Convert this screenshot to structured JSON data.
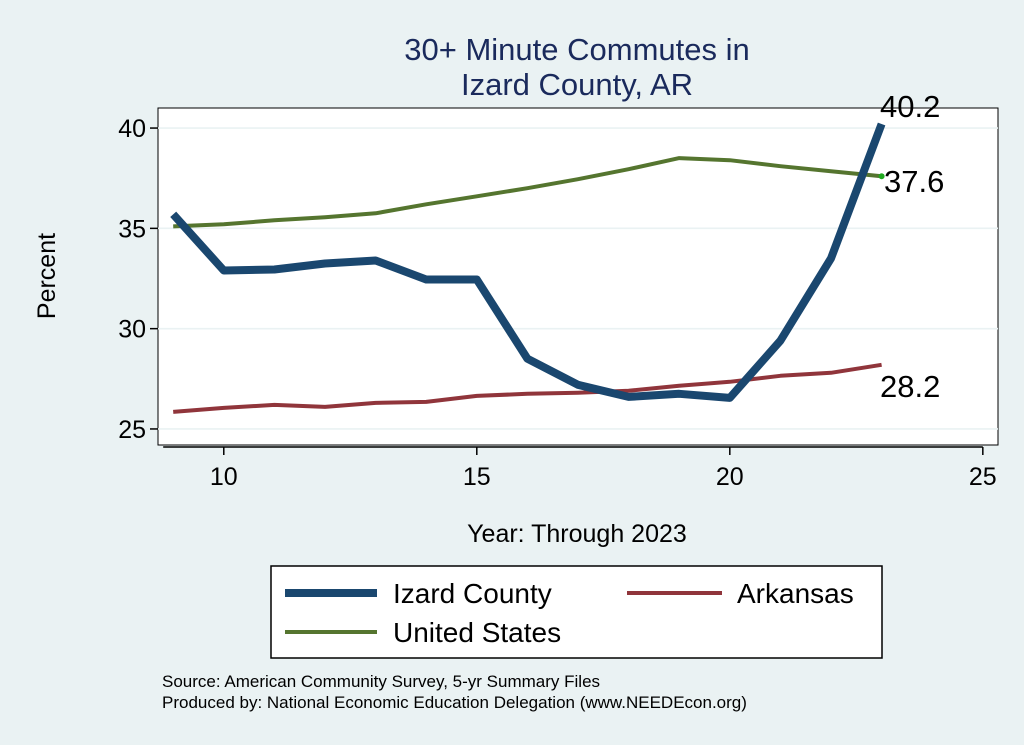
{
  "chart_data": {
    "type": "line",
    "title_lines": [
      "30+ Minute Commutes in",
      "Izard County, AR"
    ],
    "xlabel": "Year: Through 2023",
    "ylabel": "Percent",
    "xlim": [
      8.7,
      25.3
    ],
    "ylim": [
      24.2,
      41.0
    ],
    "xticks": [
      10,
      15,
      20,
      25
    ],
    "yticks": [
      25,
      30,
      35,
      40
    ],
    "grid": true,
    "legend_position": "bottom",
    "x": [
      9,
      10,
      11,
      12,
      13,
      14,
      15,
      16,
      17,
      18,
      19,
      20,
      21,
      22,
      23
    ],
    "series": [
      {
        "name": "Izard County",
        "color": "#1a476f",
        "values": [
          35.7,
          32.9,
          32.95,
          33.25,
          33.4,
          32.45,
          32.45,
          28.5,
          27.2,
          26.6,
          26.75,
          26.55,
          29.4,
          33.5,
          40.2
        ],
        "end_label": "40.2"
      },
      {
        "name": "Arkansas",
        "color": "#90353b",
        "values": [
          25.85,
          26.05,
          26.2,
          26.1,
          26.3,
          26.35,
          26.65,
          26.75,
          26.8,
          26.9,
          27.15,
          27.35,
          27.65,
          27.8,
          28.2
        ],
        "end_label": "28.2"
      },
      {
        "name": "United States",
        "color": "#55752f",
        "values": [
          35.1,
          35.2,
          35.4,
          35.55,
          35.75,
          36.2,
          36.6,
          37.0,
          37.45,
          37.95,
          38.5,
          38.4,
          38.1,
          37.85,
          37.6
        ],
        "end_label": "37.6"
      }
    ],
    "source_lines": [
      "Source: American Community Survey, 5-yr Summary Files",
      "Produced by: National Economic Education Delegation (www.NEEDEcon.org)"
    ]
  }
}
